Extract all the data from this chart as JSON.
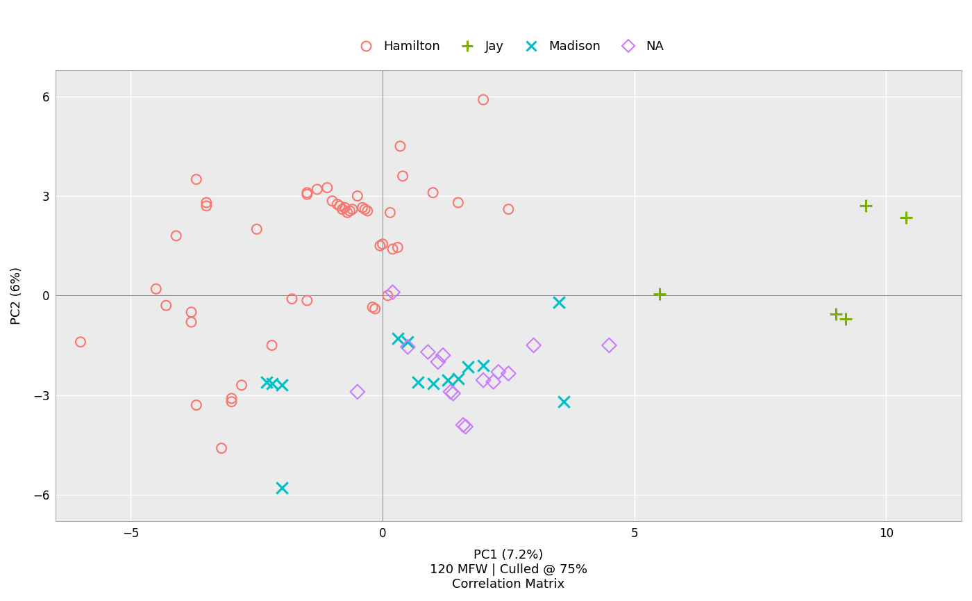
{
  "hamilton": [
    [
      -6.0,
      -1.4
    ],
    [
      -4.5,
      0.2
    ],
    [
      -4.3,
      -0.3
    ],
    [
      -4.1,
      1.8
    ],
    [
      -3.8,
      -0.5
    ],
    [
      -3.8,
      -0.8
    ],
    [
      -3.7,
      3.5
    ],
    [
      -3.7,
      -3.3
    ],
    [
      -3.5,
      2.8
    ],
    [
      -3.5,
      2.7
    ],
    [
      -3.2,
      -4.6
    ],
    [
      -3.0,
      -3.1
    ],
    [
      -3.0,
      -3.2
    ],
    [
      -2.8,
      -2.7
    ],
    [
      -2.5,
      2.0
    ],
    [
      -2.2,
      -1.5
    ],
    [
      -1.8,
      -0.1
    ],
    [
      -1.5,
      -0.15
    ],
    [
      -1.5,
      3.1
    ],
    [
      -1.5,
      3.05
    ],
    [
      -1.3,
      3.2
    ],
    [
      -1.1,
      3.25
    ],
    [
      -1.0,
      2.85
    ],
    [
      -0.9,
      2.75
    ],
    [
      -0.85,
      2.7
    ],
    [
      -0.8,
      2.6
    ],
    [
      -0.75,
      2.65
    ],
    [
      -0.7,
      2.5
    ],
    [
      -0.65,
      2.55
    ],
    [
      -0.6,
      2.6
    ],
    [
      -0.5,
      3.0
    ],
    [
      -0.4,
      2.65
    ],
    [
      -0.35,
      2.6
    ],
    [
      -0.3,
      2.55
    ],
    [
      -0.2,
      -0.35
    ],
    [
      -0.15,
      -0.4
    ],
    [
      -0.05,
      1.5
    ],
    [
      0.0,
      1.55
    ],
    [
      0.1,
      0.0
    ],
    [
      0.15,
      2.5
    ],
    [
      0.2,
      1.4
    ],
    [
      0.3,
      1.45
    ],
    [
      0.35,
      4.5
    ],
    [
      0.4,
      3.6
    ],
    [
      1.0,
      3.1
    ],
    [
      1.5,
      2.8
    ],
    [
      2.0,
      5.9
    ],
    [
      2.5,
      2.6
    ]
  ],
  "jay": [
    [
      5.5,
      0.05
    ],
    [
      9.0,
      -0.55
    ],
    [
      9.2,
      -0.7
    ],
    [
      9.6,
      2.7
    ],
    [
      10.4,
      2.35
    ]
  ],
  "madison": [
    [
      -2.0,
      -5.8
    ],
    [
      -2.3,
      -2.6
    ],
    [
      -2.2,
      -2.65
    ],
    [
      -2.0,
      -2.7
    ],
    [
      0.3,
      -1.3
    ],
    [
      0.5,
      -1.4
    ],
    [
      0.7,
      -2.6
    ],
    [
      1.0,
      -2.65
    ],
    [
      1.3,
      -2.55
    ],
    [
      1.5,
      -2.5
    ],
    [
      1.7,
      -2.15
    ],
    [
      2.0,
      -2.1
    ],
    [
      3.5,
      -0.2
    ],
    [
      3.6,
      -3.2
    ]
  ],
  "na": [
    [
      0.2,
      0.1
    ],
    [
      -0.5,
      -2.9
    ],
    [
      0.5,
      -1.55
    ],
    [
      0.9,
      -1.7
    ],
    [
      1.1,
      -2.0
    ],
    [
      1.2,
      -1.8
    ],
    [
      1.35,
      -2.9
    ],
    [
      1.4,
      -2.95
    ],
    [
      1.6,
      -3.9
    ],
    [
      1.65,
      -3.95
    ],
    [
      2.0,
      -2.55
    ],
    [
      2.2,
      -2.6
    ],
    [
      2.3,
      -2.3
    ],
    [
      2.5,
      -2.35
    ],
    [
      3.0,
      -1.5
    ],
    [
      4.5,
      -1.5
    ]
  ],
  "xlim": [
    -6.5,
    11.5
  ],
  "ylim": [
    -6.8,
    6.8
  ],
  "xticks": [
    -5,
    0,
    5,
    10
  ],
  "yticks": [
    -6,
    -3,
    0,
    3,
    6
  ],
  "xlabel_line1": "PC1 (7.2%)",
  "xlabel_line2": "120 MFW | Culled @ 75%",
  "xlabel_line3": "Correlation Matrix",
  "ylabel": "PC2 (6%)",
  "hamilton_color": "#F8766D",
  "jay_color": "#7CAE00",
  "madison_color": "#00BFC4",
  "na_color": "#C77CFF",
  "bg_color": "#EBEBEB",
  "grid_color": "#FFFFFF",
  "fig_bg": "#FFFFFF",
  "spine_color": "#AAAAAA",
  "zero_line_color": "#888888"
}
